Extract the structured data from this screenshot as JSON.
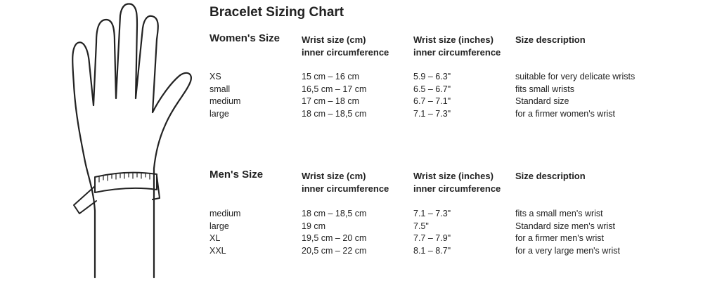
{
  "title": "Bracelet Sizing Chart",
  "headers": {
    "cm": "Wrist size (cm)",
    "cm_sub": "inner circumference",
    "in": "Wrist size (inches)",
    "in_sub": "inner circumference",
    "desc": "Size description"
  },
  "women": {
    "label": "Women's Size",
    "rows": [
      {
        "size": "XS",
        "cm": "15 cm – 16 cm",
        "in": "5.9 – 6.3\"",
        "desc": "suitable for very delicate wrists"
      },
      {
        "size": "small",
        "cm": "16,5 cm – 17 cm",
        "in": "6.5 – 6.7\"",
        "desc": "fits small wrists"
      },
      {
        "size": "medium",
        "cm": "17 cm – 18 cm",
        "in": "6.7 – 7.1\"",
        "desc": "Standard size"
      },
      {
        "size": "large",
        "cm": "18 cm – 18,5 cm",
        "in": "7.1 – 7.3\"",
        "desc": "for a firmer women's wrist"
      }
    ]
  },
  "men": {
    "label": "Men's Size",
    "rows": [
      {
        "size": "medium",
        "cm": "18 cm – 18,5 cm",
        "in": "7.1 – 7.3\"",
        "desc": "fits a small men's wrist"
      },
      {
        "size": "large",
        "cm": "19 cm",
        "in": "7.5\"",
        "desc": "Standard size men's wrist"
      },
      {
        "size": "XL",
        "cm": "19,5 cm – 20 cm",
        "in": "7.7 – 7.9\"",
        "desc": "for a firmer men's wrist"
      },
      {
        "size": "XXL",
        "cm": "20,5 cm – 22 cm",
        "in": "8.1 – 8.7\"",
        "desc": "for a very large men's wrist"
      }
    ]
  }
}
